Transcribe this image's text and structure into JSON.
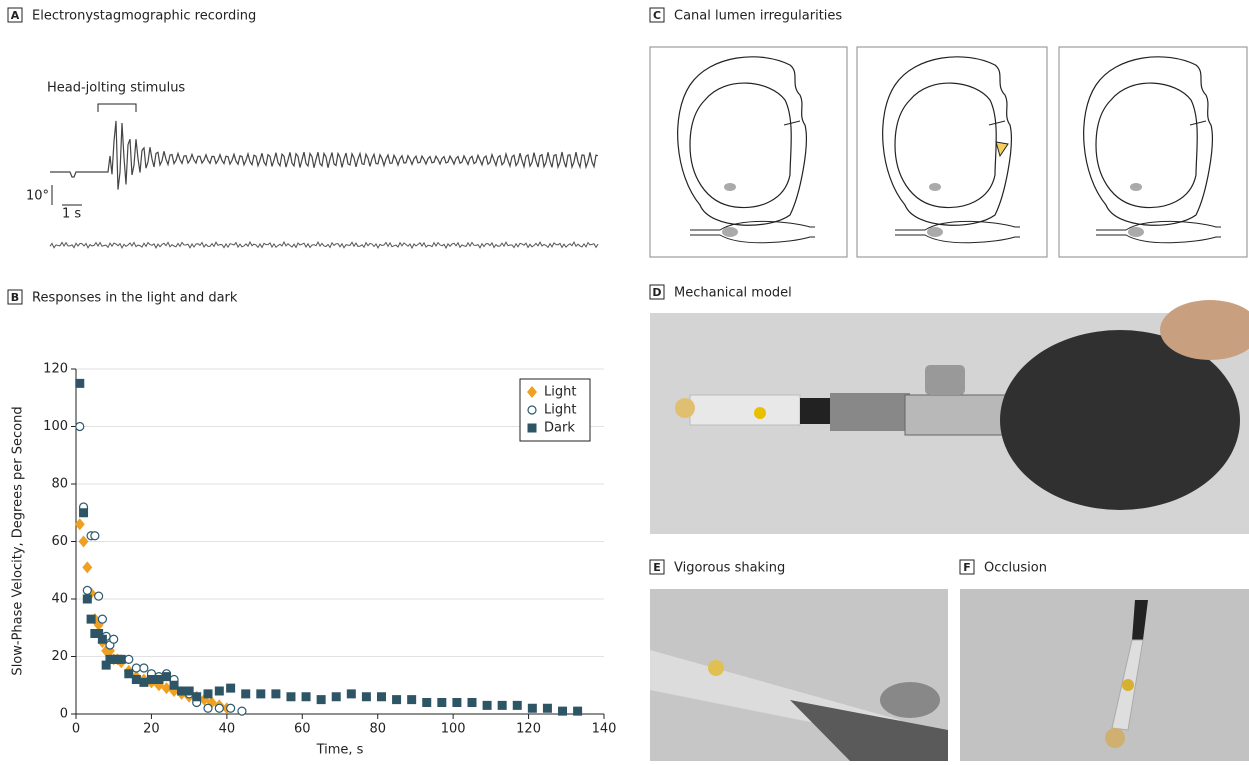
{
  "panels": {
    "a": {
      "label": "A",
      "title": "Electronystagmographic recording",
      "stimulus": "Head-jolting stimulus",
      "scale_deg": "10°",
      "scale_time": "1 s"
    },
    "b": {
      "label": "B",
      "title": "Responses in the light and dark"
    },
    "c": {
      "label": "C",
      "title": "Canal lumen irregularities"
    },
    "d": {
      "label": "D",
      "title": "Mechanical model"
    },
    "e": {
      "label": "E",
      "title": "Vigorous shaking"
    },
    "f": {
      "label": "F",
      "title": "Occlusion"
    }
  },
  "chart_data": {
    "type": "scatter",
    "x_label": "Time, s",
    "y_label": "Slow-Phase Velocity, Degrees per Second",
    "xlim": [
      0,
      140
    ],
    "ylim": [
      0,
      120
    ],
    "xticks": [
      0,
      20,
      40,
      60,
      80,
      100,
      120,
      140
    ],
    "yticks": [
      0,
      20,
      40,
      60,
      80,
      100,
      120
    ],
    "grid": true,
    "legend": "upper right",
    "series": [
      {
        "name": "Light",
        "marker": "diamond",
        "color": "#f0a020",
        "x": [
          1,
          2,
          3,
          4,
          5,
          6,
          7,
          8,
          9,
          10,
          11,
          12,
          14,
          16,
          18,
          20,
          22,
          24,
          26,
          28,
          30,
          32,
          34,
          36,
          38,
          40
        ],
        "values": [
          66,
          60,
          51,
          42,
          33,
          31,
          25,
          22,
          22,
          19,
          19,
          18,
          15,
          13,
          12,
          11,
          10,
          9,
          8,
          7,
          6,
          6,
          5,
          4,
          3,
          2
        ]
      },
      {
        "name": "Light",
        "marker": "circle",
        "color": "#2c5a6e",
        "x": [
          1,
          2,
          3,
          4,
          5,
          6,
          7,
          8,
          9,
          10,
          12,
          14,
          16,
          18,
          20,
          22,
          24,
          26,
          28,
          30,
          32,
          35,
          38,
          41,
          44
        ],
        "values": [
          100,
          72,
          43,
          62,
          62,
          41,
          33,
          27,
          24,
          26,
          19,
          19,
          16,
          16,
          14,
          13,
          14,
          12,
          8,
          7,
          4,
          2,
          2,
          2,
          1
        ]
      },
      {
        "name": "Dark",
        "marker": "square",
        "color": "#2e5566",
        "x": [
          1,
          2,
          3,
          4,
          5,
          6,
          7,
          8,
          9,
          10,
          11,
          12,
          14,
          16,
          18,
          20,
          22,
          24,
          26,
          28,
          30,
          32,
          35,
          38,
          41,
          45,
          49,
          53,
          57,
          61,
          65,
          69,
          73,
          77,
          81,
          85,
          89,
          93,
          97,
          101,
          105,
          109,
          113,
          117,
          121,
          125,
          129,
          133
        ],
        "values": [
          115,
          70,
          40,
          33,
          28,
          28,
          26,
          17,
          19,
          19,
          19,
          19,
          14,
          12,
          11,
          12,
          12,
          13,
          10,
          8,
          8,
          6,
          7,
          8,
          9,
          7,
          7,
          7,
          6,
          6,
          5,
          6,
          7,
          6,
          6,
          5,
          5,
          4,
          4,
          4,
          4,
          3,
          3,
          3,
          2,
          2,
          1,
          1
        ]
      }
    ]
  }
}
